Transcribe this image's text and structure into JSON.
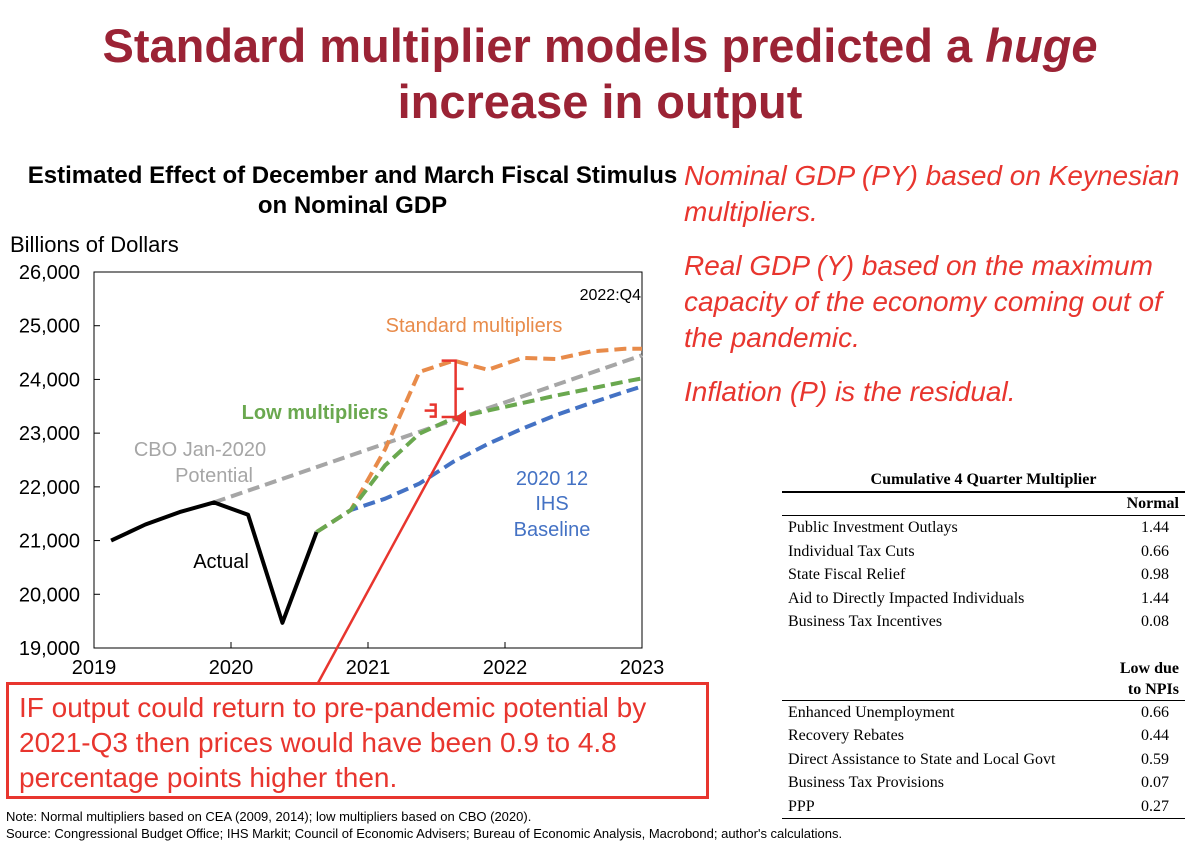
{
  "slide": {
    "title_part1": "Standard multiplier models predicted a ",
    "title_emph": "huge",
    "title_part2": "increase in output"
  },
  "chart_data": {
    "type": "line",
    "title": "Estimated Effect of December and March Fiscal Stimulus on Nominal GDP",
    "ylabel": "Billions of Dollars",
    "xlabel": "",
    "xlim": [
      2019,
      2023
    ],
    "ylim": [
      19000,
      26000
    ],
    "x_ticks": [
      "2019",
      "2020",
      "2021",
      "2022",
      "2023"
    ],
    "y_ticks": [
      "19,000",
      "20,000",
      "21,000",
      "22,000",
      "23,000",
      "24,000",
      "25,000",
      "26,000"
    ],
    "corner_label": "2022:Q4",
    "series": [
      {
        "name": "Actual",
        "style": "solid",
        "color": "#000000",
        "x": [
          2019.125,
          2019.375,
          2019.625,
          2019.875,
          2020.125,
          2020.375,
          2020.625
        ],
        "values": [
          21000,
          21300,
          21530,
          21710,
          21480,
          19470,
          21160
        ]
      },
      {
        "name": "CBO Jan-2020 Potential",
        "style": "dashed",
        "color": "#a6a6a6",
        "x": [
          2019.875,
          2023.0
        ],
        "values": [
          21710,
          24450
        ]
      },
      {
        "name": "Low multipliers",
        "style": "dashed",
        "color": "#6aa84f",
        "x": [
          2020.625,
          2020.875,
          2021.125,
          2021.375,
          2021.625,
          2021.875,
          2022.125,
          2022.375,
          2022.625,
          2022.875,
          2023.0
        ],
        "values": [
          21160,
          21570,
          22400,
          22990,
          23280,
          23420,
          23560,
          23700,
          23830,
          23960,
          24020
        ]
      },
      {
        "name": "Standard multipliers",
        "style": "dashed",
        "color": "#e88b4a",
        "x": [
          2020.625,
          2020.875,
          2021.125,
          2021.375,
          2021.625,
          2021.875,
          2022.125,
          2022.375,
          2022.625,
          2022.875,
          2023.0
        ],
        "values": [
          21160,
          21570,
          22700,
          24140,
          24350,
          24180,
          24400,
          24380,
          24520,
          24570,
          24570
        ]
      },
      {
        "name": "2020 12 IHS Baseline",
        "style": "dashed",
        "color": "#4472c4",
        "x": [
          2020.625,
          2020.875,
          2021.125,
          2021.375,
          2021.625,
          2021.875,
          2022.125,
          2022.375,
          2022.625,
          2022.875,
          2023.0
        ],
        "values": [
          21160,
          21570,
          21780,
          22060,
          22470,
          22800,
          23080,
          23340,
          23560,
          23770,
          23870
        ]
      }
    ],
    "labels": {
      "actual": "Actual",
      "cbo_line1": "CBO Jan-2020",
      "cbo_line2": "Potential",
      "low": "Low multipliers",
      "standard": "Standard multipliers",
      "ihs_line1": "2020 12",
      "ihs_line2": "IHS",
      "ihs_line3": "Baseline"
    },
    "bracket": {
      "x": 2021.625,
      "low": 23300,
      "high": 24350,
      "mid": 23420
    }
  },
  "notes": {
    "n1": "Nominal GDP (PY) based on Keynesian multipliers.",
    "n2": "Real GDP (Y) based on the maximum capacity of the economy coming out of the pandemic.",
    "n3": "Inflation (P) is the residual."
  },
  "callout": {
    "text": "IF output could return to pre-pandemic potential by 2021-Q3 then prices would have been 0.9 to 4.8 percentage points higher then."
  },
  "footnote": {
    "note": "Note: Normal multipliers based on CEA (2009, 2014); low multipliers based on CBO (2020).",
    "source": "Source: Congressional Budget Office; IHS Markit; Council of Economic Advisers; Bureau of Economic Analysis, Macrobond; author's calculations."
  },
  "table": {
    "title": "Cumulative 4 Quarter Multiplier",
    "normal_header": "Normal",
    "normal_rows": [
      {
        "label": "Public Investment Outlays",
        "value": "1.44"
      },
      {
        "label": "Individual Tax Cuts",
        "value": "0.66"
      },
      {
        "label": "State Fiscal Relief",
        "value": "0.98"
      },
      {
        "label": "Aid to Directly Impacted Individuals",
        "value": "1.44"
      },
      {
        "label": "Business Tax Incentives",
        "value": "0.08"
      }
    ],
    "low_header_line1": "Low due",
    "low_header_line2": "to NPIs",
    "low_rows": [
      {
        "label": "Enhanced Unemployment",
        "value": "0.66"
      },
      {
        "label": "Recovery Rebates",
        "value": "0.44"
      },
      {
        "label": "Direct Assistance to State and Local Govt",
        "value": "0.59"
      },
      {
        "label": "Business Tax Provisions",
        "value": "0.07"
      },
      {
        "label": "PPP",
        "value": "0.27"
      }
    ]
  },
  "colors": {
    "title": "#9b2335",
    "annotation_red": "#e8352e"
  }
}
